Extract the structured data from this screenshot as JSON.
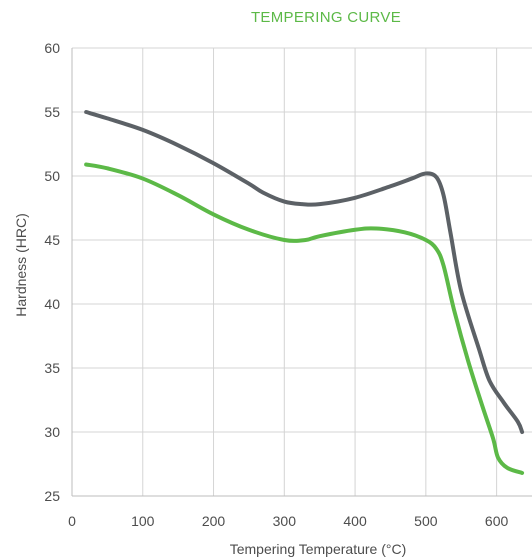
{
  "chart_data": {
    "type": "line",
    "title": "TEMPERING CURVE",
    "xlabel": "Tempering Temperature (°C)",
    "ylabel": "Hardness (HRC)",
    "xlim": [
      0,
      650
    ],
    "ylim": [
      25,
      60
    ],
    "x_ticks": [
      "0",
      "100",
      "200",
      "300",
      "400",
      "500",
      "600"
    ],
    "y_ticks": [
      "25",
      "30",
      "35",
      "40",
      "45",
      "50",
      "55",
      "60"
    ],
    "grid": true,
    "legend": false,
    "colors": {
      "title": "#5cb947",
      "text": "#4d4d4d",
      "grid": "#d4d4d4",
      "axis": "#bdbdbd"
    },
    "series": [
      {
        "color": "#5c6166",
        "points": [
          [
            20,
            55.0
          ],
          [
            50,
            54.5
          ],
          [
            100,
            53.6
          ],
          [
            150,
            52.4
          ],
          [
            200,
            51.0
          ],
          [
            250,
            49.4
          ],
          [
            270,
            48.7
          ],
          [
            300,
            48.0
          ],
          [
            325,
            47.8
          ],
          [
            350,
            47.8
          ],
          [
            400,
            48.3
          ],
          [
            450,
            49.2
          ],
          [
            480,
            49.8
          ],
          [
            500,
            50.2
          ],
          [
            515,
            49.9
          ],
          [
            525,
            48.5
          ],
          [
            535,
            45.5
          ],
          [
            550,
            41.0
          ],
          [
            575,
            36.5
          ],
          [
            590,
            34.0
          ],
          [
            610,
            32.3
          ],
          [
            630,
            30.8
          ],
          [
            636,
            30.0
          ]
        ]
      },
      {
        "color": "#5cb947",
        "points": [
          [
            20,
            50.9
          ],
          [
            50,
            50.6
          ],
          [
            100,
            49.8
          ],
          [
            150,
            48.5
          ],
          [
            200,
            47.0
          ],
          [
            250,
            45.8
          ],
          [
            300,
            45.0
          ],
          [
            330,
            45.0
          ],
          [
            350,
            45.3
          ],
          [
            400,
            45.8
          ],
          [
            430,
            45.9
          ],
          [
            470,
            45.6
          ],
          [
            500,
            45.0
          ],
          [
            515,
            44.3
          ],
          [
            525,
            43.0
          ],
          [
            540,
            39.5
          ],
          [
            560,
            35.5
          ],
          [
            580,
            32.0
          ],
          [
            595,
            29.5
          ],
          [
            602,
            28.0
          ],
          [
            615,
            27.2
          ],
          [
            636,
            26.8
          ]
        ]
      }
    ]
  }
}
